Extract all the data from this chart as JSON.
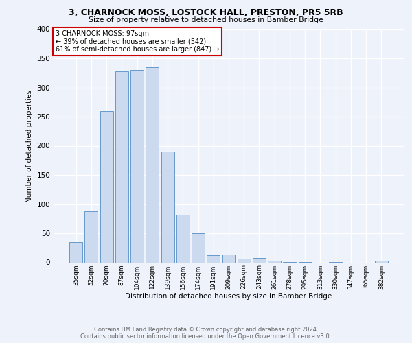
{
  "title": "3, CHARNOCK MOSS, LOSTOCK HALL, PRESTON, PR5 5RB",
  "subtitle": "Size of property relative to detached houses in Bamber Bridge",
  "xlabel": "Distribution of detached houses by size in Bamber Bridge",
  "ylabel": "Number of detached properties",
  "bar_color": "#ccdaf0",
  "bar_edge_color": "#6699cc",
  "background_color": "#eef2fb",
  "grid_color": "#ffffff",
  "categories": [
    "35sqm",
    "52sqm",
    "70sqm",
    "87sqm",
    "104sqm",
    "122sqm",
    "139sqm",
    "156sqm",
    "174sqm",
    "191sqm",
    "209sqm",
    "226sqm",
    "243sqm",
    "261sqm",
    "278sqm",
    "295sqm",
    "313sqm",
    "330sqm",
    "347sqm",
    "365sqm",
    "382sqm"
  ],
  "values": [
    35,
    88,
    260,
    328,
    330,
    335,
    190,
    82,
    50,
    12,
    13,
    7,
    8,
    3,
    1,
    1,
    0,
    1,
    0,
    0,
    3
  ],
  "ylim": [
    0,
    400
  ],
  "yticks": [
    0,
    50,
    100,
    150,
    200,
    250,
    300,
    350,
    400
  ],
  "annotation_text": "3 CHARNOCK MOSS: 97sqm\n← 39% of detached houses are smaller (542)\n61% of semi-detached houses are larger (847) →",
  "annotation_box_color": "#ffffff",
  "annotation_box_edge": "#cc0000",
  "footer_line1": "Contains HM Land Registry data © Crown copyright and database right 2024.",
  "footer_line2": "Contains public sector information licensed under the Open Government Licence v3.0."
}
